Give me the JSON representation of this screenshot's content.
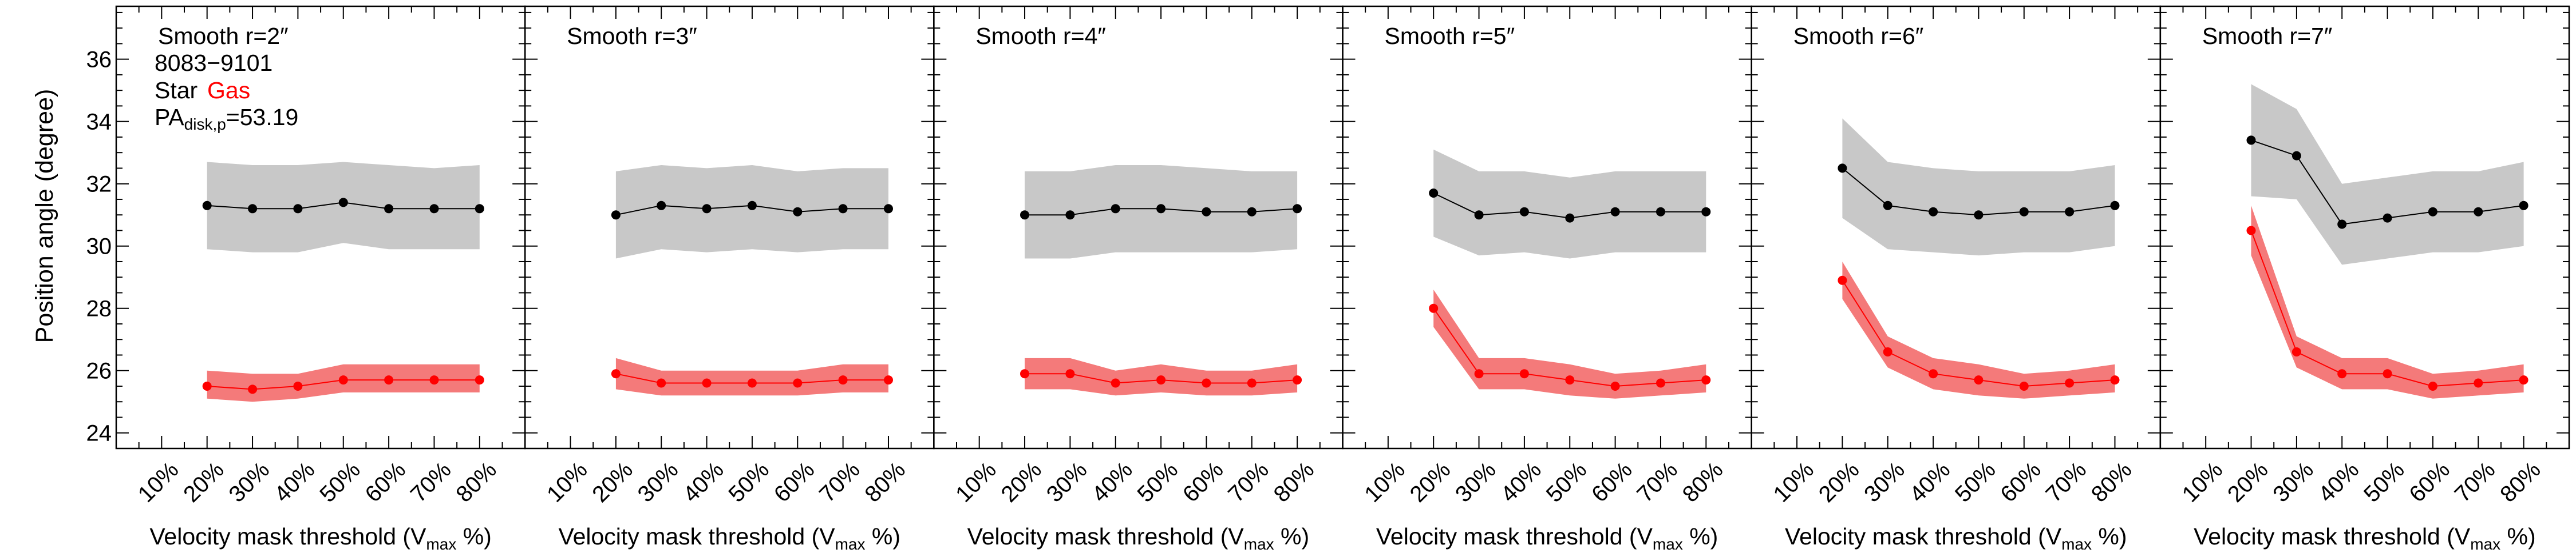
{
  "figure": {
    "ylabel": "Position angle (degree)",
    "xlabel_main": "Velocity mask threshold (V",
    "xlabel_sub": "max",
    "xlabel_end": " %)"
  },
  "legend": {
    "id_text": "8083−9101",
    "star_label": "Star",
    "gas_label": "Gas",
    "pa_main": "PA",
    "pa_sub": "disk,p",
    "pa_value": "=53.19"
  },
  "colors": {
    "star": "#000000",
    "star_band": "#c8c8c8",
    "gas": "#ff0000",
    "gas_band": "#f47a7a"
  },
  "chart_data": [
    {
      "type": "line",
      "title": "Smooth r=2″",
      "categories": [
        "10%",
        "20%",
        "30%",
        "40%",
        "50%",
        "60%",
        "70%",
        "80%"
      ],
      "ylim": [
        23.5,
        37.7
      ],
      "yticks": [
        24,
        26,
        28,
        30,
        32,
        34,
        36
      ],
      "x": [
        20,
        30,
        40,
        50,
        60,
        70,
        80
      ],
      "series": [
        {
          "name": "Star",
          "values": [
            31.3,
            31.2,
            31.2,
            31.4,
            31.2,
            31.2,
            31.2
          ],
          "lower": [
            29.9,
            29.8,
            29.8,
            30.1,
            29.9,
            29.9,
            29.9
          ],
          "upper": [
            32.7,
            32.6,
            32.6,
            32.7,
            32.6,
            32.5,
            32.6
          ]
        },
        {
          "name": "Gas",
          "values": [
            25.5,
            25.4,
            25.5,
            25.7,
            25.7,
            25.7,
            25.7
          ],
          "lower": [
            25.1,
            25.0,
            25.1,
            25.3,
            25.3,
            25.3,
            25.3
          ],
          "upper": [
            26.0,
            25.9,
            25.9,
            26.2,
            26.2,
            26.2,
            26.2
          ]
        }
      ]
    },
    {
      "type": "line",
      "title": "Smooth r=3″",
      "categories": [
        "10%",
        "20%",
        "30%",
        "40%",
        "50%",
        "60%",
        "70%",
        "80%"
      ],
      "ylim": [
        23.5,
        37.7
      ],
      "yticks": [
        24,
        26,
        28,
        30,
        32,
        34,
        36
      ],
      "x": [
        20,
        30,
        40,
        50,
        60,
        70,
        80
      ],
      "series": [
        {
          "name": "Star",
          "values": [
            31.0,
            31.3,
            31.2,
            31.3,
            31.1,
            31.2,
            31.2
          ],
          "lower": [
            29.6,
            29.9,
            29.8,
            29.9,
            29.8,
            29.9,
            29.9
          ],
          "upper": [
            32.4,
            32.6,
            32.5,
            32.6,
            32.4,
            32.5,
            32.5
          ]
        },
        {
          "name": "Gas",
          "values": [
            25.9,
            25.6,
            25.6,
            25.6,
            25.6,
            25.7,
            25.7
          ],
          "lower": [
            25.4,
            25.2,
            25.2,
            25.2,
            25.2,
            25.3,
            25.3
          ],
          "upper": [
            26.4,
            26.0,
            26.0,
            26.0,
            26.0,
            26.2,
            26.2
          ]
        }
      ]
    },
    {
      "type": "line",
      "title": "Smooth r=4″",
      "categories": [
        "10%",
        "20%",
        "30%",
        "40%",
        "50%",
        "60%",
        "70%",
        "80%"
      ],
      "ylim": [
        23.5,
        37.7
      ],
      "yticks": [
        24,
        26,
        28,
        30,
        32,
        34,
        36
      ],
      "x": [
        20,
        30,
        40,
        50,
        60,
        70,
        80
      ],
      "series": [
        {
          "name": "Star",
          "values": [
            31.0,
            31.0,
            31.2,
            31.2,
            31.1,
            31.1,
            31.2
          ],
          "lower": [
            29.6,
            29.6,
            29.8,
            29.8,
            29.8,
            29.8,
            29.9
          ],
          "upper": [
            32.4,
            32.4,
            32.6,
            32.6,
            32.5,
            32.4,
            32.4
          ]
        },
        {
          "name": "Gas",
          "values": [
            25.9,
            25.9,
            25.6,
            25.7,
            25.6,
            25.6,
            25.7
          ],
          "lower": [
            25.4,
            25.4,
            25.2,
            25.3,
            25.2,
            25.2,
            25.3
          ],
          "upper": [
            26.4,
            26.4,
            26.0,
            26.2,
            26.0,
            26.0,
            26.2
          ]
        }
      ]
    },
    {
      "type": "line",
      "title": "Smooth r=5″",
      "categories": [
        "10%",
        "20%",
        "30%",
        "40%",
        "50%",
        "60%",
        "70%",
        "80%"
      ],
      "ylim": [
        23.5,
        37.7
      ],
      "yticks": [
        24,
        26,
        28,
        30,
        32,
        34,
        36
      ],
      "x": [
        20,
        30,
        40,
        50,
        60,
        70,
        80
      ],
      "series": [
        {
          "name": "Star",
          "values": [
            31.7,
            31.0,
            31.1,
            30.9,
            31.1,
            31.1,
            31.1
          ],
          "lower": [
            30.3,
            29.7,
            29.8,
            29.6,
            29.8,
            29.8,
            29.8
          ],
          "upper": [
            33.1,
            32.4,
            32.4,
            32.2,
            32.4,
            32.4,
            32.4
          ]
        },
        {
          "name": "Gas",
          "values": [
            28.0,
            25.9,
            25.9,
            25.7,
            25.5,
            25.6,
            25.7
          ],
          "lower": [
            27.4,
            25.4,
            25.4,
            25.2,
            25.1,
            25.2,
            25.3
          ],
          "upper": [
            28.6,
            26.4,
            26.4,
            26.2,
            25.9,
            26.0,
            26.2
          ]
        }
      ]
    },
    {
      "type": "line",
      "title": "Smooth r=6″",
      "categories": [
        "10%",
        "20%",
        "30%",
        "40%",
        "50%",
        "60%",
        "70%",
        "80%"
      ],
      "ylim": [
        23.5,
        37.7
      ],
      "yticks": [
        24,
        26,
        28,
        30,
        32,
        34,
        36
      ],
      "x": [
        20,
        30,
        40,
        50,
        60,
        70,
        80
      ],
      "series": [
        {
          "name": "Star",
          "values": [
            32.5,
            31.3,
            31.1,
            31.0,
            31.1,
            31.1,
            31.3
          ],
          "lower": [
            30.9,
            29.9,
            29.8,
            29.7,
            29.8,
            29.8,
            30.0
          ],
          "upper": [
            34.1,
            32.7,
            32.5,
            32.4,
            32.4,
            32.4,
            32.6
          ]
        },
        {
          "name": "Gas",
          "values": [
            28.9,
            26.6,
            25.9,
            25.7,
            25.5,
            25.6,
            25.7
          ],
          "lower": [
            28.3,
            26.1,
            25.4,
            25.2,
            25.1,
            25.2,
            25.3
          ],
          "upper": [
            29.5,
            27.1,
            26.4,
            26.2,
            25.9,
            26.0,
            26.2
          ]
        }
      ]
    },
    {
      "type": "line",
      "title": "Smooth r=7″",
      "categories": [
        "10%",
        "20%",
        "30%",
        "40%",
        "50%",
        "60%",
        "70%",
        "80%"
      ],
      "ylim": [
        23.5,
        37.7
      ],
      "yticks": [
        24,
        26,
        28,
        30,
        32,
        34,
        36
      ],
      "x": [
        20,
        30,
        40,
        50,
        60,
        70,
        80
      ],
      "series": [
        {
          "name": "Star",
          "values": [
            33.4,
            32.9,
            30.7,
            30.9,
            31.1,
            31.1,
            31.3
          ],
          "lower": [
            31.6,
            31.5,
            29.4,
            29.6,
            29.8,
            29.8,
            30.0
          ],
          "upper": [
            35.2,
            34.4,
            32.0,
            32.2,
            32.4,
            32.4,
            32.7
          ]
        },
        {
          "name": "Gas",
          "values": [
            30.5,
            26.6,
            25.9,
            25.9,
            25.5,
            25.6,
            25.7
          ],
          "lower": [
            29.7,
            26.1,
            25.4,
            25.4,
            25.1,
            25.2,
            25.3
          ],
          "upper": [
            31.3,
            27.1,
            26.4,
            26.4,
            25.9,
            26.0,
            26.2
          ]
        }
      ]
    }
  ]
}
